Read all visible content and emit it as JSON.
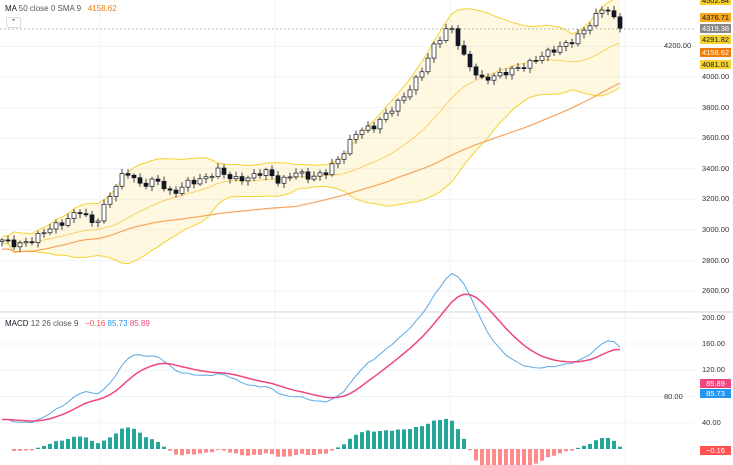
{
  "legend_main": {
    "name": "MA",
    "params": "50 close 0 SMA 9",
    "value": "4158.62",
    "collapse_icon": "chevron-up-icon"
  },
  "legend_macd": {
    "name": "MACD",
    "params": "12 26 close 9",
    "hist": "−0.16",
    "macd": "85.73",
    "signal": "85.89"
  },
  "price_tags": [
    {
      "label": "4502.84",
      "color": "#f5d230"
    },
    {
      "label": "4376.71",
      "color": "#f7a81b"
    },
    {
      "label": "4319.38",
      "color": "#888888"
    },
    {
      "label": "4291.82",
      "color": "#f5d230"
    },
    {
      "label": "4158.62",
      "color": "#ef7d0c"
    },
    {
      "label": "4081.01",
      "color": "#f5d230"
    }
  ],
  "macd_tags": [
    {
      "label": "85.89",
      "color": "#f0457d"
    },
    {
      "label": "85.73",
      "color": "#2196f3"
    },
    {
      "label": "−0.16",
      "color": "#ff5252"
    }
  ],
  "chart_data": [
    {
      "type": "candlestick",
      "price_axis_ticks": [
        "4200.00",
        "4000.00",
        "3800.00",
        "3600.00",
        "3400.00",
        "3200.00",
        "3000.00",
        "2800.00",
        "2600.00"
      ],
      "ylim": [
        2550,
        4530
      ],
      "approx_close_path": [
        2935,
        2900,
        2935,
        3010,
        3050,
        3130,
        3030,
        3230,
        3390,
        3290,
        3330,
        3230,
        3310,
        3330,
        3390,
        3330,
        3340,
        3390,
        3310,
        3380,
        3340,
        3380,
        3490,
        3650,
        3670,
        3770,
        3870,
        4010,
        4210,
        4340,
        4110,
        3980,
        4010,
        4045,
        4080,
        4145,
        4190,
        4240,
        4340,
        4470,
        4319.38
      ],
      "overlays": [
        "Bollinger Bands",
        "MA 50"
      ],
      "colors": {
        "up": "#26a69a",
        "band": "#f5d230",
        "ma": "#f7a35c"
      }
    },
    {
      "type": "macd",
      "axis_ticks": [
        "200.00",
        "160.00",
        "120.00",
        "80.00",
        "40.00"
      ],
      "ylim": [
        -25,
        200
      ],
      "colors": {
        "macd": "#5aa9e6",
        "signal": "#f0457d",
        "hist_up": "#26a69a",
        "hist_down": "#ff8a8a"
      }
    }
  ]
}
